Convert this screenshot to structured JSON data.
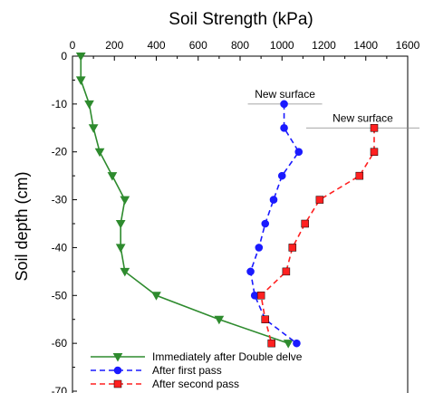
{
  "chart_data": {
    "type": "line",
    "title": "Soil Strength (kPa)",
    "xlabel": "",
    "ylabel": "Soil depth (cm)",
    "x_axis_position": "top",
    "xlim": [
      0,
      1600
    ],
    "ylim": [
      -70,
      0
    ],
    "x_ticks": [
      "0",
      "200",
      "400",
      "600",
      "800",
      "1000",
      "1200",
      "1400",
      "1600"
    ],
    "y_ticks": [
      "0",
      "-10",
      "-20",
      "-30",
      "-40",
      "-50",
      "-60",
      "-70"
    ],
    "grid": false,
    "legend_position": "bottom-left",
    "series": [
      {
        "name": "Immediately after Double delve",
        "color": "#2e8b2e",
        "marker": "triangle-down",
        "line": "solid",
        "x": [
          40,
          40,
          80,
          100,
          130,
          190,
          250,
          230,
          230,
          250,
          400,
          700,
          1030
        ],
        "y": [
          0,
          -5,
          -10,
          -15,
          -20,
          -25,
          -30,
          -35,
          -40,
          -45,
          -50,
          -55,
          -60
        ]
      },
      {
        "name": "After first pass",
        "color": "#1a1aff",
        "marker": "circle",
        "line": "dashed",
        "x": [
          1010,
          1010,
          1080,
          1000,
          960,
          920,
          890,
          850,
          870,
          920,
          1070
        ],
        "y": [
          -10,
          -15,
          -20,
          -25,
          -30,
          -35,
          -40,
          -45,
          -50,
          -55,
          -60
        ]
      },
      {
        "name": "After second pass",
        "color": "#ff2020",
        "marker": "square",
        "line": "dashed",
        "x": [
          1440,
          1440,
          1370,
          1180,
          1110,
          1050,
          1020,
          900,
          920,
          950
        ],
        "y": [
          -15,
          -20,
          -25,
          -30,
          -35,
          -40,
          -45,
          -50,
          -55,
          -60
        ]
      }
    ],
    "annotations": [
      {
        "text": "New surface",
        "x": 1010,
        "y": -10,
        "series": "After first pass"
      },
      {
        "text": "New surface",
        "x": 1440,
        "y": -15,
        "series": "After second pass"
      }
    ]
  }
}
